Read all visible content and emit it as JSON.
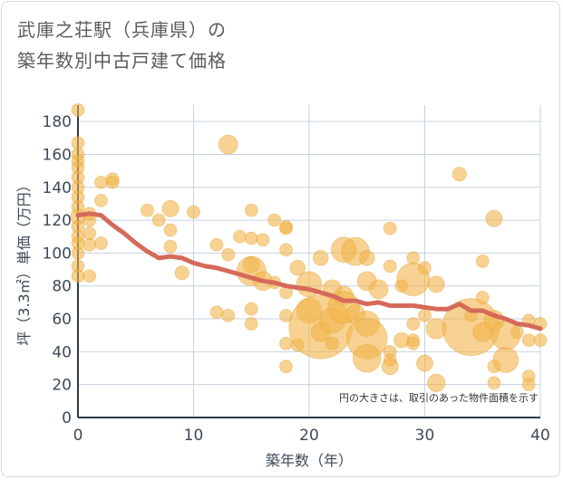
{
  "title_line1": "武庫之荘駅（兵庫県）の",
  "title_line2": "築年数別中古戸建て価格",
  "chart_data": {
    "type": "scatter",
    "xlabel": "築年数（年）",
    "ylabel": "坪（3.3㎡）単価（万円）",
    "xlim": [
      0,
      40
    ],
    "ylim": [
      0,
      190
    ],
    "x_ticks": [
      "0",
      "10",
      "20",
      "30",
      "40"
    ],
    "y_ticks": [
      "0",
      "20",
      "40",
      "60",
      "80",
      "100",
      "120",
      "140",
      "160",
      "180"
    ],
    "grid": true,
    "note": "円の大きさは、取引のあった物件面積を示す",
    "colors": {
      "bubble": "#f2b44a",
      "trend": "#d56a5a",
      "grid": "#c7d3df"
    },
    "points": [
      {
        "x": 0,
        "y": 187,
        "s": 1
      },
      {
        "x": 0,
        "y": 167,
        "s": 1
      },
      {
        "x": 0,
        "y": 160,
        "s": 1
      },
      {
        "x": 0,
        "y": 156,
        "s": 1
      },
      {
        "x": 0,
        "y": 152,
        "s": 1
      },
      {
        "x": 0,
        "y": 146,
        "s": 1
      },
      {
        "x": 0,
        "y": 140,
        "s": 1
      },
      {
        "x": 0,
        "y": 134,
        "s": 1
      },
      {
        "x": 0,
        "y": 128,
        "s": 1
      },
      {
        "x": 0,
        "y": 122,
        "s": 1.2
      },
      {
        "x": 0,
        "y": 116,
        "s": 1
      },
      {
        "x": 0,
        "y": 110,
        "s": 1
      },
      {
        "x": 0,
        "y": 106,
        "s": 1
      },
      {
        "x": 0,
        "y": 100,
        "s": 1
      },
      {
        "x": 0,
        "y": 92,
        "s": 1
      },
      {
        "x": 0,
        "y": 86,
        "s": 1
      },
      {
        "x": 1,
        "y": 124,
        "s": 1
      },
      {
        "x": 1,
        "y": 120,
        "s": 1
      },
      {
        "x": 1,
        "y": 112,
        "s": 1
      },
      {
        "x": 1,
        "y": 105,
        "s": 1
      },
      {
        "x": 1,
        "y": 86,
        "s": 1
      },
      {
        "x": 2,
        "y": 143,
        "s": 1
      },
      {
        "x": 2,
        "y": 132,
        "s": 1
      },
      {
        "x": 2,
        "y": 106,
        "s": 1
      },
      {
        "x": 3,
        "y": 145,
        "s": 1
      },
      {
        "x": 3,
        "y": 143,
        "s": 1
      },
      {
        "x": 6,
        "y": 126,
        "s": 1
      },
      {
        "x": 7,
        "y": 120,
        "s": 1
      },
      {
        "x": 8,
        "y": 127,
        "s": 1.3
      },
      {
        "x": 8,
        "y": 114,
        "s": 1
      },
      {
        "x": 8,
        "y": 104,
        "s": 1
      },
      {
        "x": 9,
        "y": 88,
        "s": 1.1
      },
      {
        "x": 10,
        "y": 125,
        "s": 1
      },
      {
        "x": 12,
        "y": 105,
        "s": 1
      },
      {
        "x": 12,
        "y": 64,
        "s": 1
      },
      {
        "x": 13,
        "y": 166,
        "s": 1.5
      },
      {
        "x": 13,
        "y": 99,
        "s": 1
      },
      {
        "x": 13,
        "y": 62,
        "s": 1
      },
      {
        "x": 14,
        "y": 110,
        "s": 1
      },
      {
        "x": 15,
        "y": 126,
        "s": 1
      },
      {
        "x": 15,
        "y": 109,
        "s": 1
      },
      {
        "x": 15,
        "y": 93,
        "s": 1.3
      },
      {
        "x": 15,
        "y": 89,
        "s": 2.3
      },
      {
        "x": 15,
        "y": 66,
        "s": 1
      },
      {
        "x": 15,
        "y": 57,
        "s": 1
      },
      {
        "x": 16,
        "y": 108,
        "s": 1
      },
      {
        "x": 16,
        "y": 83,
        "s": 1.5
      },
      {
        "x": 17,
        "y": 120,
        "s": 1
      },
      {
        "x": 17,
        "y": 82,
        "s": 1
      },
      {
        "x": 18,
        "y": 116,
        "s": 1
      },
      {
        "x": 18,
        "y": 115,
        "s": 1
      },
      {
        "x": 18,
        "y": 102,
        "s": 1
      },
      {
        "x": 18,
        "y": 76,
        "s": 1
      },
      {
        "x": 18,
        "y": 62,
        "s": 1
      },
      {
        "x": 18,
        "y": 45,
        "s": 1
      },
      {
        "x": 18,
        "y": 31,
        "s": 1
      },
      {
        "x": 19,
        "y": 91,
        "s": 1.2
      },
      {
        "x": 19,
        "y": 44,
        "s": 1
      },
      {
        "x": 20,
        "y": 81,
        "s": 2
      },
      {
        "x": 20,
        "y": 65,
        "s": 2
      },
      {
        "x": 21,
        "y": 97,
        "s": 1.2
      },
      {
        "x": 21,
        "y": 55,
        "s": 5
      },
      {
        "x": 21,
        "y": 52,
        "s": 1.5
      },
      {
        "x": 22,
        "y": 78,
        "s": 1.5
      },
      {
        "x": 22,
        "y": 59,
        "s": 2
      },
      {
        "x": 22,
        "y": 45,
        "s": 1
      },
      {
        "x": 23,
        "y": 102,
        "s": 2
      },
      {
        "x": 23,
        "y": 74,
        "s": 1.5
      },
      {
        "x": 23,
        "y": 67,
        "s": 2.5
      },
      {
        "x": 24,
        "y": 101,
        "s": 2.2
      },
      {
        "x": 24,
        "y": 63,
        "s": 1.5
      },
      {
        "x": 25,
        "y": 97,
        "s": 1.2
      },
      {
        "x": 25,
        "y": 83,
        "s": 1.5
      },
      {
        "x": 25,
        "y": 57,
        "s": 2
      },
      {
        "x": 25,
        "y": 48,
        "s": 3.2
      },
      {
        "x": 25,
        "y": 36,
        "s": 2.2
      },
      {
        "x": 26,
        "y": 78,
        "s": 1.5
      },
      {
        "x": 27,
        "y": 115,
        "s": 1
      },
      {
        "x": 27,
        "y": 92,
        "s": 1
      },
      {
        "x": 27,
        "y": 40,
        "s": 1
      },
      {
        "x": 27,
        "y": 35,
        "s": 1
      },
      {
        "x": 27,
        "y": 31,
        "s": 1.3
      },
      {
        "x": 28,
        "y": 47,
        "s": 1.2
      },
      {
        "x": 28,
        "y": 80,
        "s": 1
      },
      {
        "x": 29,
        "y": 97,
        "s": 1
      },
      {
        "x": 29,
        "y": 84,
        "s": 2.6
      },
      {
        "x": 29,
        "y": 57,
        "s": 1
      },
      {
        "x": 29,
        "y": 47,
        "s": 1
      },
      {
        "x": 29,
        "y": 45,
        "s": 1
      },
      {
        "x": 30,
        "y": 91,
        "s": 1
      },
      {
        "x": 30,
        "y": 62,
        "s": 1
      },
      {
        "x": 30,
        "y": 33,
        "s": 1.3
      },
      {
        "x": 31,
        "y": 81,
        "s": 1.3
      },
      {
        "x": 31,
        "y": 54,
        "s": 1.6
      },
      {
        "x": 31,
        "y": 21,
        "s": 1.4
      },
      {
        "x": 33,
        "y": 148,
        "s": 1.1
      },
      {
        "x": 34,
        "y": 55,
        "s": 4.5
      },
      {
        "x": 34,
        "y": 62,
        "s": 1
      },
      {
        "x": 35,
        "y": 95,
        "s": 1
      },
      {
        "x": 35,
        "y": 73,
        "s": 1
      },
      {
        "x": 35,
        "y": 52,
        "s": 1.5
      },
      {
        "x": 36,
        "y": 121,
        "s": 1.3
      },
      {
        "x": 36,
        "y": 59,
        "s": 1.6
      },
      {
        "x": 36,
        "y": 31,
        "s": 1
      },
      {
        "x": 36,
        "y": 21,
        "s": 1
      },
      {
        "x": 37,
        "y": 50,
        "s": 2.3
      },
      {
        "x": 37,
        "y": 35,
        "s": 2
      },
      {
        "x": 38,
        "y": 52,
        "s": 1
      },
      {
        "x": 39,
        "y": 59,
        "s": 1
      },
      {
        "x": 39,
        "y": 47,
        "s": 1
      },
      {
        "x": 39,
        "y": 25,
        "s": 1
      },
      {
        "x": 39,
        "y": 20,
        "s": 1
      },
      {
        "x": 40,
        "y": 57,
        "s": 1
      },
      {
        "x": 40,
        "y": 47,
        "s": 1
      }
    ],
    "trend": [
      {
        "x": 0,
        "y": 123
      },
      {
        "x": 1,
        "y": 124
      },
      {
        "x": 2,
        "y": 123
      },
      {
        "x": 3,
        "y": 117
      },
      {
        "x": 4,
        "y": 112
      },
      {
        "x": 5,
        "y": 106
      },
      {
        "x": 6,
        "y": 101
      },
      {
        "x": 7,
        "y": 97
      },
      {
        "x": 8,
        "y": 98
      },
      {
        "x": 9,
        "y": 97
      },
      {
        "x": 10,
        "y": 94
      },
      {
        "x": 11,
        "y": 92
      },
      {
        "x": 12,
        "y": 91
      },
      {
        "x": 13,
        "y": 89
      },
      {
        "x": 14,
        "y": 87
      },
      {
        "x": 15,
        "y": 85
      },
      {
        "x": 16,
        "y": 83
      },
      {
        "x": 17,
        "y": 82
      },
      {
        "x": 18,
        "y": 80
      },
      {
        "x": 19,
        "y": 79
      },
      {
        "x": 20,
        "y": 78
      },
      {
        "x": 21,
        "y": 76
      },
      {
        "x": 22,
        "y": 74
      },
      {
        "x": 23,
        "y": 71
      },
      {
        "x": 24,
        "y": 71
      },
      {
        "x": 25,
        "y": 69
      },
      {
        "x": 26,
        "y": 70
      },
      {
        "x": 27,
        "y": 68
      },
      {
        "x": 28,
        "y": 68
      },
      {
        "x": 29,
        "y": 68
      },
      {
        "x": 30,
        "y": 67
      },
      {
        "x": 31,
        "y": 66
      },
      {
        "x": 32,
        "y": 66
      },
      {
        "x": 33,
        "y": 69
      },
      {
        "x": 34,
        "y": 65
      },
      {
        "x": 35,
        "y": 65
      },
      {
        "x": 36,
        "y": 62
      },
      {
        "x": 37,
        "y": 60
      },
      {
        "x": 38,
        "y": 57
      },
      {
        "x": 39,
        "y": 56
      },
      {
        "x": 40,
        "y": 54
      }
    ]
  }
}
